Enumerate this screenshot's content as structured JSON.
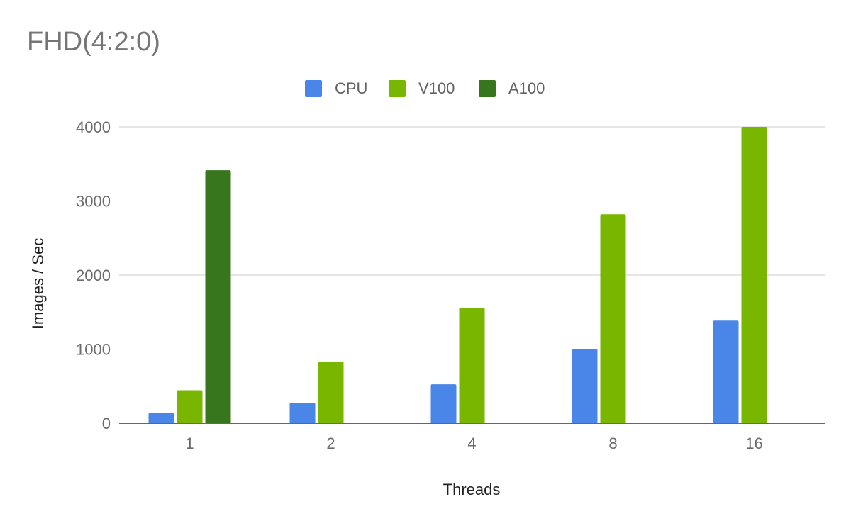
{
  "chart_data": {
    "type": "bar",
    "title": "FHD(4:2:0)",
    "xlabel": "Threads",
    "ylabel": "Images / Sec",
    "categories": [
      "1",
      "2",
      "4",
      "8",
      "16"
    ],
    "series": [
      {
        "name": "CPU",
        "color": "#4a86e8",
        "values": [
          140,
          275,
          525,
          1005,
          1385
        ]
      },
      {
        "name": "V100",
        "color": "#78b600",
        "values": [
          445,
          830,
          1560,
          2820,
          4000
        ]
      },
      {
        "name": "A100",
        "color": "#38761d",
        "values": [
          3415,
          null,
          null,
          null,
          null
        ]
      }
    ],
    "ylim": [
      0,
      4000
    ],
    "yticks": [
      "0",
      "1000",
      "2000",
      "3000",
      "4000"
    ],
    "grid": true,
    "legend_position": "top"
  }
}
